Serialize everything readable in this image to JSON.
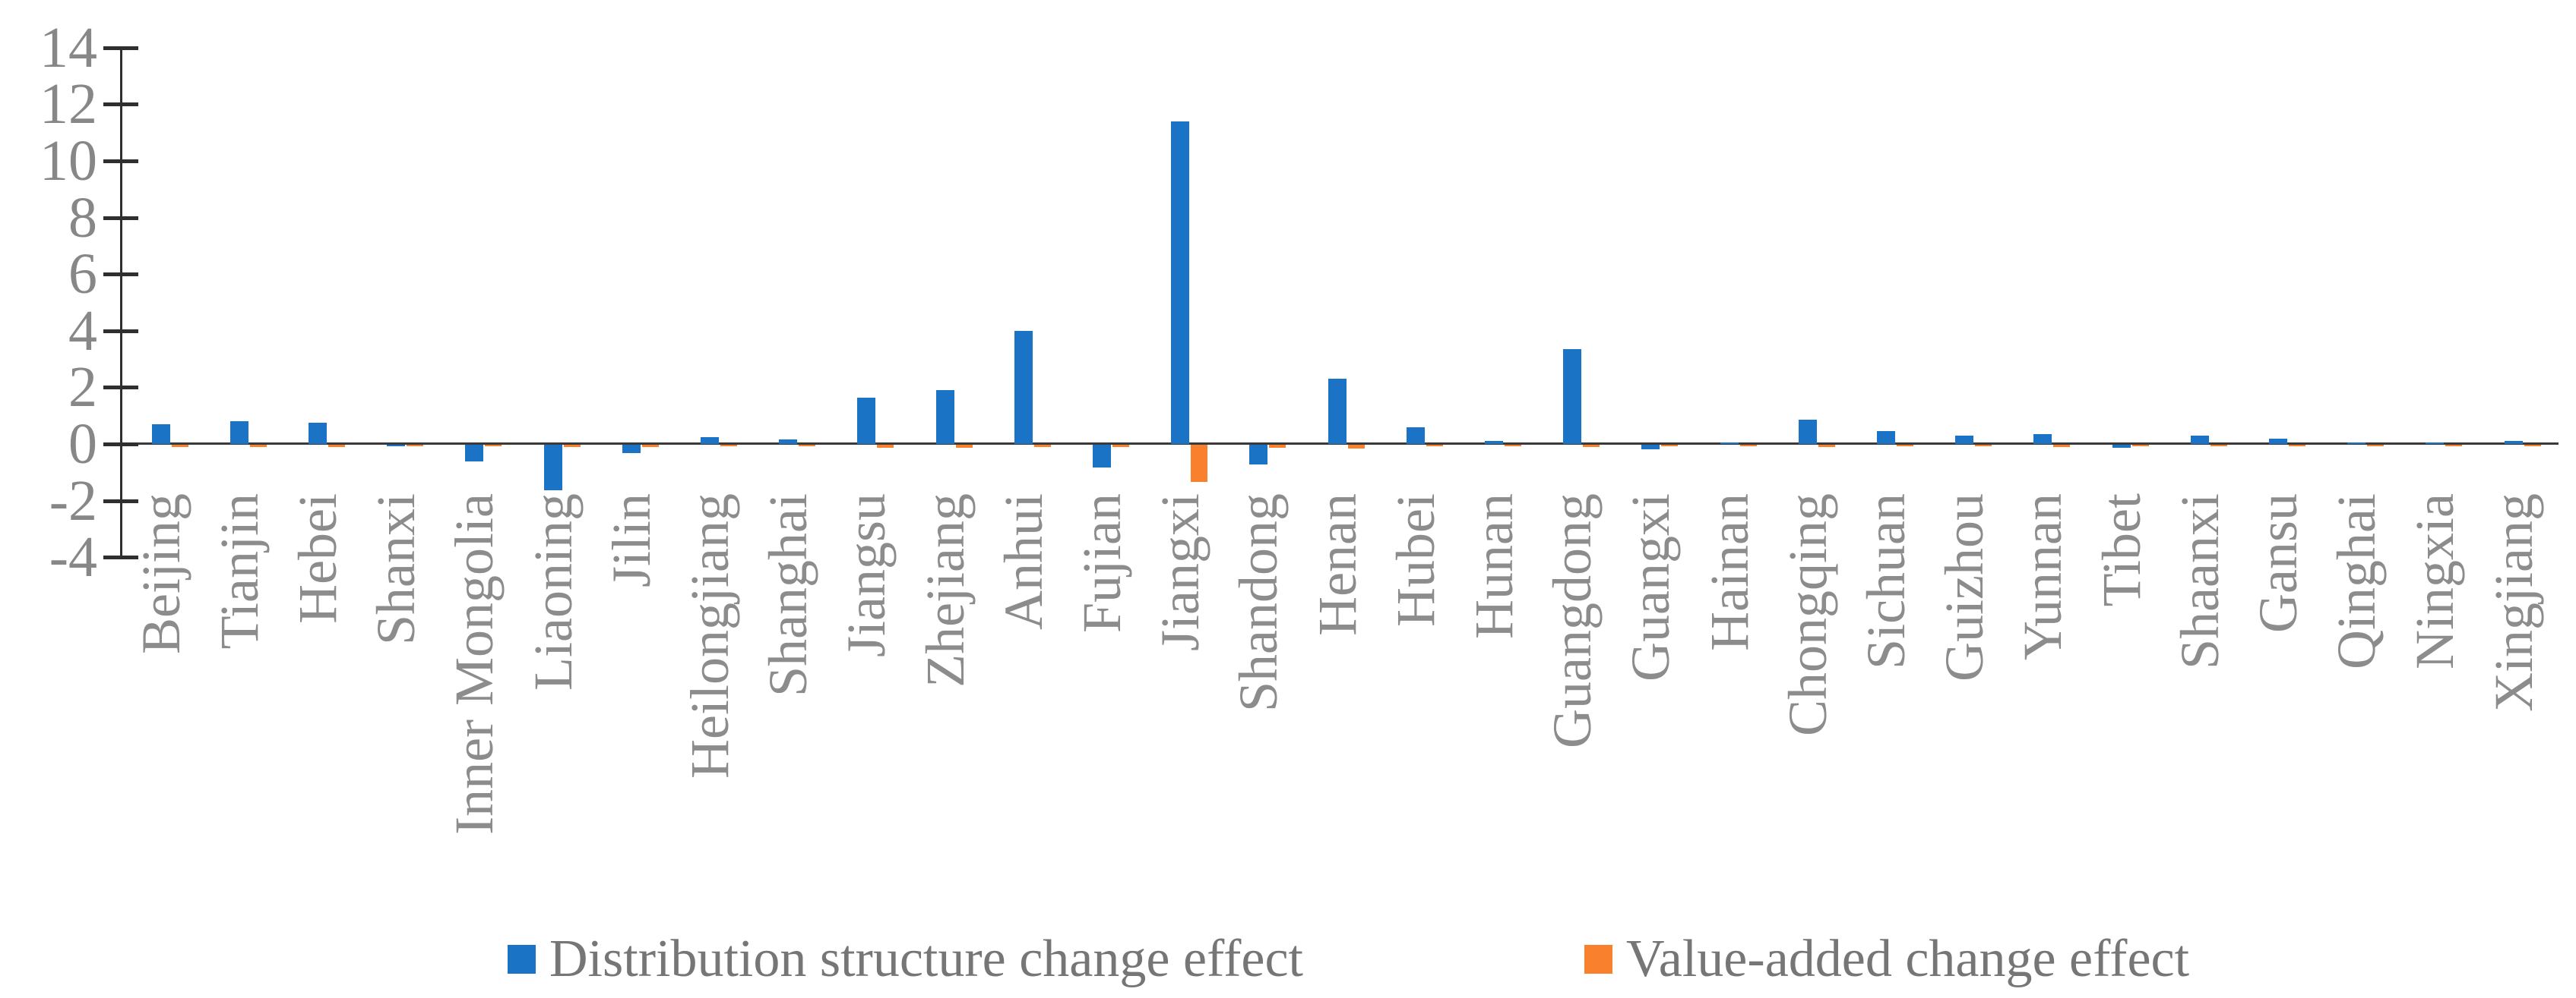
{
  "chart_data": {
    "type": "bar",
    "title": "",
    "xlabel": "",
    "ylabel": "",
    "categories": [
      "Beijing",
      "Tianjin",
      "Hebei",
      "Shanxi",
      "Inner Mongolia",
      "Liaoning",
      "Jilin",
      "Heilongjiang",
      "Shanghai",
      "Jiangsu",
      "Zhejiang",
      "Anhui",
      "Fujian",
      "Jiangxi",
      "Shandong",
      "Henan",
      "Hubei",
      "Hunan",
      "Guangdong",
      "Guangxi",
      "Hainan",
      "Chongqing",
      "Sichuan",
      "Guizhou",
      "Yunnan",
      "Tibet",
      "Shaanxi",
      "Gansu",
      "Qinghai",
      "Ningxia",
      "Xingjiang"
    ],
    "series": [
      {
        "name": "Distribution structure change effect",
        "color": "#1B73C6",
        "values": [
          0.7,
          0.8,
          0.75,
          -0.05,
          -0.6,
          -1.6,
          -0.3,
          0.25,
          0.15,
          1.65,
          1.9,
          4.0,
          -0.8,
          11.4,
          -0.7,
          2.3,
          0.6,
          0.1,
          3.35,
          -0.15,
          0.05,
          0.85,
          0.45,
          0.3,
          0.35,
          -0.1,
          0.3,
          0.2,
          0.05,
          0.05,
          0.1
        ]
      },
      {
        "name": "Value-added change effect",
        "color": "#F9802C",
        "values": [
          -0.07,
          -0.07,
          -0.07,
          -0.05,
          -0.05,
          -0.08,
          -0.07,
          -0.05,
          -0.05,
          -0.1,
          -0.1,
          -0.08,
          -0.08,
          -1.3,
          -0.1,
          -0.12,
          -0.05,
          -0.05,
          -0.08,
          -0.05,
          -0.05,
          -0.08,
          -0.05,
          -0.05,
          -0.08,
          -0.05,
          -0.05,
          -0.05,
          -0.05,
          -0.05,
          -0.05
        ]
      }
    ],
    "ylim": [
      -4,
      14
    ],
    "yticks": [
      "14",
      "12",
      "10",
      "8",
      "6",
      "4",
      "2",
      "0",
      "-2",
      "-4"
    ],
    "ytick_values": [
      14,
      12,
      10,
      8,
      6,
      4,
      2,
      0,
      -2,
      -4
    ],
    "grid": false,
    "legend_position": "bottom"
  },
  "colors": {
    "bar_blue": "#1B73C6",
    "bar_orange": "#F9802C",
    "axis_line": "#2f2f2f",
    "tick_text": "#878787",
    "category_text": "#8c8c8c",
    "legend_text": "#767676",
    "background": "#ffffff"
  }
}
